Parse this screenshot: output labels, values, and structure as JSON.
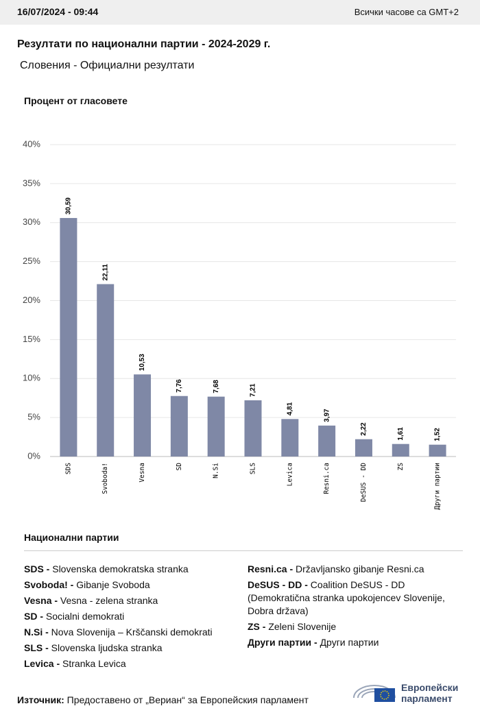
{
  "header": {
    "date": "16/07/2024 - 09:44",
    "timezone": "Всички часове са GMT+2"
  },
  "title": "Резултати по национални партии - 2024-2029 г.",
  "subtitle": "Словения - Официални резултати",
  "chart_data": {
    "type": "bar",
    "y_label": "Процент от гласовете",
    "categories": [
      "SDS",
      "Svoboda!",
      "Vesna",
      "SD",
      "N.Si",
      "SLS",
      "Levica",
      "Resni.ca",
      "DeSUS - DD",
      "ZS",
      "Други партии"
    ],
    "values": [
      30.59,
      22.11,
      10.53,
      7.76,
      7.68,
      7.21,
      4.81,
      3.97,
      2.22,
      1.61,
      1.52
    ],
    "value_labels": [
      "30,59",
      "22,11",
      "10,53",
      "7,76",
      "7,68",
      "7,21",
      "4,81",
      "3,97",
      "2,22",
      "1,61",
      "1,52"
    ],
    "color": "#7f88a6",
    "ylim": [
      0,
      40
    ],
    "yticks": [
      {
        "value": 0,
        "label": "0%"
      },
      {
        "value": 5,
        "label": "5%"
      },
      {
        "value": 10,
        "label": "10%"
      },
      {
        "value": 15,
        "label": "15%"
      },
      {
        "value": 20,
        "label": "20%"
      },
      {
        "value": 25,
        "label": "25%"
      },
      {
        "value": 30,
        "label": "30%"
      },
      {
        "value": 35,
        "label": "35%"
      },
      {
        "value": 40,
        "label": "40%"
      }
    ],
    "grid": true
  },
  "legend": {
    "title": "Национални партии",
    "left": [
      {
        "abbr": "SDS -",
        "name": "Slovenska demokratska stranka"
      },
      {
        "abbr": "Svoboda! -",
        "name": "Gibanje Svoboda"
      },
      {
        "abbr": "Vesna -",
        "name": "Vesna - zelena stranka"
      },
      {
        "abbr": "SD -",
        "name": "Socialni demokrati"
      },
      {
        "abbr": "N.Si -",
        "name": "Nova Slovenija – Krščanski demokrati"
      },
      {
        "abbr": "SLS -",
        "name": "Slovenska ljudska stranka"
      },
      {
        "abbr": "Levica -",
        "name": "Stranka Levica"
      }
    ],
    "right": [
      {
        "abbr": "Resni.ca -",
        "name": "Državljansko gibanje Resni.ca"
      },
      {
        "abbr": "DeSUS - DD -",
        "name": "Coalition DeSUS - DD (Demokratična stranka upokojencev Slovenije, Dobra država)"
      },
      {
        "abbr": "ZS -",
        "name": "Zeleni Slovenije"
      },
      {
        "abbr": "Други партии -",
        "name": "Други партии"
      }
    ]
  },
  "source": {
    "label": "Източник:",
    "text": "Предоставено от „Вериан“ за Европейския парламент"
  },
  "logo": {
    "line1": "Европейски",
    "line2": "парламент"
  }
}
